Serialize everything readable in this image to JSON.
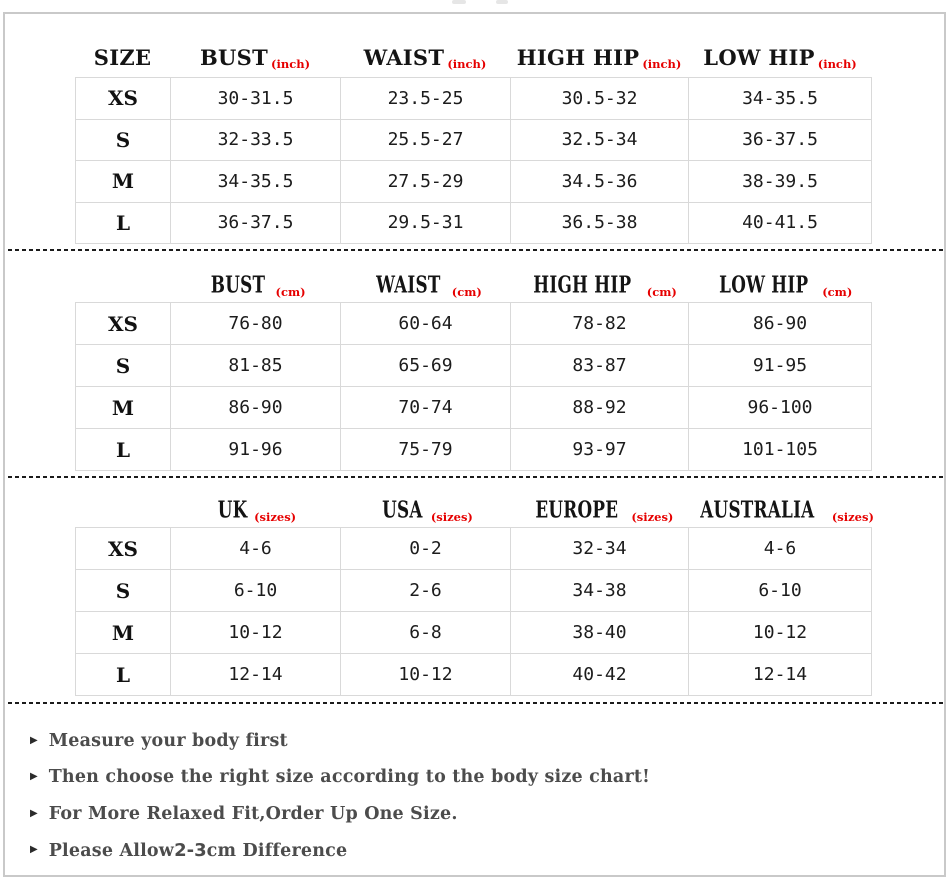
{
  "colors": {
    "accent_red": "#e60000",
    "grid_line": "#d9d9d9",
    "frame_border": "#c9c9c9",
    "note_text": "#4c4c4c",
    "header_text": "#141414"
  },
  "tables": [
    {
      "name": "measurements-inch",
      "headers": [
        {
          "label": "SIZE",
          "sub": ""
        },
        {
          "label": "BUST",
          "sub": "(inch)"
        },
        {
          "label": "WAIST",
          "sub": "(inch)"
        },
        {
          "label": "HIGH HIP",
          "sub": "(inch)"
        },
        {
          "label": "LOW HIP",
          "sub": "(inch)"
        }
      ],
      "rows": [
        {
          "size": "XS",
          "values": [
            "30-31.5",
            "23.5-25",
            "30.5-32",
            "34-35.5"
          ]
        },
        {
          "size": "S",
          "values": [
            "32-33.5",
            "25.5-27",
            "32.5-34",
            "36-37.5"
          ]
        },
        {
          "size": "M",
          "values": [
            "34-35.5",
            "27.5-29",
            "34.5-36",
            "38-39.5"
          ]
        },
        {
          "size": "L",
          "values": [
            "36-37.5",
            "29.5-31",
            "36.5-38",
            "40-41.5"
          ]
        }
      ]
    },
    {
      "name": "measurements-cm",
      "headers": [
        {
          "label": "",
          "sub": ""
        },
        {
          "label": "BUST",
          "sub": "(cm)"
        },
        {
          "label": "WAIST",
          "sub": "(cm)"
        },
        {
          "label": "HIGH HIP",
          "sub": "(cm)"
        },
        {
          "label": "LOW HIP",
          "sub": "(cm)"
        }
      ],
      "rows": [
        {
          "size": "XS",
          "values": [
            "76-80",
            "60-64",
            "78-82",
            "86-90"
          ]
        },
        {
          "size": "S",
          "values": [
            "81-85",
            "65-69",
            "83-87",
            "91-95"
          ]
        },
        {
          "size": "M",
          "values": [
            "86-90",
            "70-74",
            "88-92",
            "96-100"
          ]
        },
        {
          "size": "L",
          "values": [
            "91-96",
            "75-79",
            "93-97",
            "101-105"
          ]
        }
      ]
    },
    {
      "name": "international-sizes",
      "headers": [
        {
          "label": "",
          "sub": ""
        },
        {
          "label": "UK",
          "sub": "(sizes)"
        },
        {
          "label": "USA",
          "sub": "(sizes)"
        },
        {
          "label": "EUROPE",
          "sub": "(sizes)"
        },
        {
          "label": "AUSTRALIA",
          "sub": "(sizes)"
        }
      ],
      "rows": [
        {
          "size": "XS",
          "values": [
            "4-6",
            "0-2",
            "32-34",
            "4-6"
          ]
        },
        {
          "size": "S",
          "values": [
            "6-10",
            "2-6",
            "34-38",
            "6-10"
          ]
        },
        {
          "size": "M",
          "values": [
            "10-12",
            "6-8",
            "38-40",
            "10-12"
          ]
        },
        {
          "size": "L",
          "values": [
            "12-14",
            "10-12",
            "40-42",
            "12-14"
          ]
        }
      ]
    }
  ],
  "notes": [
    {
      "bullet": "▶",
      "text": "Measure your body first"
    },
    {
      "bullet": "▶",
      "text": "Then choose the right size according to the body size chart!"
    },
    {
      "bullet": "▶",
      "text": "For More Relaxed Fit,Order Up One Size."
    },
    {
      "bullet": "▶",
      "prefix": "Please Allow ",
      "highlight": "2-3",
      "suffix": "cm Difference"
    }
  ]
}
